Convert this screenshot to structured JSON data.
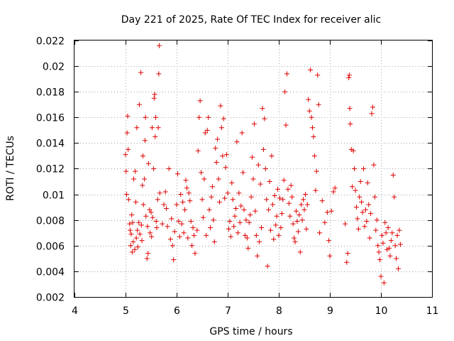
{
  "chart_data": {
    "type": "scatter",
    "title": "Day 221 of 2025, Rate Of TEC Index for receiver alic",
    "xlabel": "GPS time / hours",
    "ylabel": "ROTI / TECUs",
    "xlim": [
      4,
      11
    ],
    "ylim": [
      0.002,
      0.022
    ],
    "xticks": [
      4,
      5,
      6,
      7,
      8,
      9,
      10,
      11
    ],
    "xtick_labels": [
      "4",
      "5",
      "6",
      "7",
      "8",
      "9",
      "10",
      "11"
    ],
    "yticks": [
      0.002,
      0.004,
      0.006,
      0.008,
      0.01,
      0.012,
      0.014,
      0.016,
      0.018,
      0.02,
      0.022
    ],
    "ytick_labels": [
      "0.002",
      "0.004",
      "0.006",
      "0.008",
      "0.01",
      "0.012",
      "0.014",
      "0.016",
      "0.018",
      "0.02",
      "0.022"
    ],
    "grid": true,
    "marker": "+",
    "color": "#e00000",
    "series": [
      {
        "name": "ROTI",
        "points": [
          [
            5.0,
            0.0131
          ],
          [
            5.01,
            0.0118
          ],
          [
            5.02,
            0.01
          ],
          [
            5.03,
            0.0148
          ],
          [
            5.04,
            0.0161
          ],
          [
            5.05,
            0.0135
          ],
          [
            5.06,
            0.0096
          ],
          [
            5.08,
            0.0077
          ],
          [
            5.09,
            0.0072
          ],
          [
            5.1,
            0.006
          ],
          [
            5.11,
            0.0069
          ],
          [
            5.12,
            0.0084
          ],
          [
            5.13,
            0.0055
          ],
          [
            5.14,
            0.0078
          ],
          [
            5.15,
            0.0063
          ],
          [
            5.16,
            0.0112
          ],
          [
            5.18,
            0.0057
          ],
          [
            5.19,
            0.0118
          ],
          [
            5.2,
            0.0094
          ],
          [
            5.21,
            0.0066
          ],
          [
            5.22,
            0.0152
          ],
          [
            5.23,
            0.0072
          ],
          [
            5.24,
            0.0059
          ],
          [
            5.26,
            0.0078
          ],
          [
            5.27,
            0.017
          ],
          [
            5.28,
            0.0069
          ],
          [
            5.3,
            0.0195
          ],
          [
            5.31,
            0.0076
          ],
          [
            5.32,
            0.0064
          ],
          [
            5.33,
            0.0107
          ],
          [
            5.34,
            0.013
          ],
          [
            5.35,
            0.0092
          ],
          [
            5.37,
            0.0112
          ],
          [
            5.38,
            0.0142
          ],
          [
            5.39,
            0.016
          ],
          [
            5.4,
            0.0083
          ],
          [
            5.42,
            0.005
          ],
          [
            5.43,
            0.0075
          ],
          [
            5.44,
            0.0054
          ],
          [
            5.45,
            0.0124
          ],
          [
            5.47,
            0.0088
          ],
          [
            5.48,
            0.007
          ],
          [
            5.5,
            0.0086
          ],
          [
            5.51,
            0.0067
          ],
          [
            5.52,
            0.0152
          ],
          [
            5.53,
            0.0082
          ],
          [
            5.55,
            0.012
          ],
          [
            5.56,
            0.0175
          ],
          [
            5.57,
            0.0178
          ],
          [
            5.58,
            0.0145
          ],
          [
            5.59,
            0.016
          ],
          [
            5.6,
            0.0079
          ],
          [
            5.61,
            0.0074
          ],
          [
            5.63,
            0.0096
          ],
          [
            5.64,
            0.0152
          ],
          [
            5.65,
            0.0194
          ],
          [
            5.66,
            0.0216
          ],
          [
            5.67,
            0.0101
          ],
          [
            5.72,
            0.0077
          ],
          [
            5.75,
            0.0092
          ],
          [
            5.78,
            0.0102
          ],
          [
            5.8,
            0.0089
          ],
          [
            5.82,
            0.0075
          ],
          [
            5.85,
            0.012
          ],
          [
            5.88,
            0.0065
          ],
          [
            5.9,
            0.0081
          ],
          [
            5.92,
            0.006
          ],
          [
            5.94,
            0.0049
          ],
          [
            5.96,
            0.0071
          ],
          [
            6.0,
            0.0092
          ],
          [
            6.02,
            0.0116
          ],
          [
            6.04,
            0.0079
          ],
          [
            6.06,
            0.0067
          ],
          [
            6.08,
            0.01
          ],
          [
            6.1,
            0.0077
          ],
          [
            6.12,
            0.0094
          ],
          [
            6.14,
            0.007
          ],
          [
            6.16,
            0.0088
          ],
          [
            6.18,
            0.0111
          ],
          [
            6.2,
            0.0105
          ],
          [
            6.22,
            0.0066
          ],
          [
            6.24,
            0.0101
          ],
          [
            6.26,
            0.0095
          ],
          [
            6.28,
            0.0079
          ],
          [
            6.3,
            0.006
          ],
          [
            6.32,
            0.0074
          ],
          [
            6.34,
            0.0068
          ],
          [
            6.36,
            0.0054
          ],
          [
            6.4,
            0.0072
          ],
          [
            6.42,
            0.0134
          ],
          [
            6.44,
            0.016
          ],
          [
            6.46,
            0.0173
          ],
          [
            6.48,
            0.0117
          ],
          [
            6.5,
            0.0096
          ],
          [
            6.52,
            0.0082
          ],
          [
            6.54,
            0.0112
          ],
          [
            6.56,
            0.0148
          ],
          [
            6.58,
            0.0068
          ],
          [
            6.6,
            0.015
          ],
          [
            6.62,
            0.016
          ],
          [
            6.64,
            0.0088
          ],
          [
            6.66,
            0.0074
          ],
          [
            6.68,
            0.0098
          ],
          [
            6.7,
            0.0106
          ],
          [
            6.72,
            0.008
          ],
          [
            6.74,
            0.0063
          ],
          [
            6.76,
            0.0136
          ],
          [
            6.78,
            0.0125
          ],
          [
            6.8,
            0.0143
          ],
          [
            6.82,
            0.0112
          ],
          [
            6.84,
            0.0094
          ],
          [
            6.86,
            0.0169
          ],
          [
            6.88,
            0.0152
          ],
          [
            6.9,
            0.013
          ],
          [
            6.92,
            0.0159
          ],
          [
            6.94,
            0.0097
          ],
          [
            6.96,
            0.0121
          ],
          [
            6.98,
            0.0131
          ],
          [
            7.0,
            0.0101
          ],
          [
            7.02,
            0.0073
          ],
          [
            7.04,
            0.0079
          ],
          [
            7.06,
            0.0067
          ],
          [
            7.08,
            0.0109
          ],
          [
            7.1,
            0.0096
          ],
          [
            7.12,
            0.0075
          ],
          [
            7.14,
            0.0083
          ],
          [
            7.16,
            0.0089
          ],
          [
            7.18,
            0.0141
          ],
          [
            7.2,
            0.007
          ],
          [
            7.22,
            0.0101
          ],
          [
            7.24,
            0.0078
          ],
          [
            7.26,
            0.0091
          ],
          [
            7.28,
            0.0148
          ],
          [
            7.3,
            0.0117
          ],
          [
            7.32,
            0.0088
          ],
          [
            7.34,
            0.0068
          ],
          [
            7.36,
            0.008
          ],
          [
            7.38,
            0.0066
          ],
          [
            7.4,
            0.0058
          ],
          [
            7.42,
            0.0078
          ],
          [
            7.44,
            0.0084
          ],
          [
            7.46,
            0.0098
          ],
          [
            7.48,
            0.0129
          ],
          [
            7.5,
            0.0112
          ],
          [
            7.52,
            0.0155
          ],
          [
            7.54,
            0.0087
          ],
          [
            7.56,
            0.0068
          ],
          [
            7.58,
            0.0052
          ],
          [
            7.6,
            0.0123
          ],
          [
            7.62,
            0.0063
          ],
          [
            7.64,
            0.0108
          ],
          [
            7.66,
            0.0074
          ],
          [
            7.68,
            0.0167
          ],
          [
            7.7,
            0.0135
          ],
          [
            7.72,
            0.0159
          ],
          [
            7.74,
            0.012
          ],
          [
            7.76,
            0.0096
          ],
          [
            7.78,
            0.0044
          ],
          [
            7.8,
            0.0088
          ],
          [
            7.82,
            0.011
          ],
          [
            7.84,
            0.0072
          ],
          [
            7.86,
            0.013
          ],
          [
            7.88,
            0.0092
          ],
          [
            7.9,
            0.0065
          ],
          [
            7.92,
            0.0099
          ],
          [
            7.94,
            0.0076
          ],
          [
            7.96,
            0.0083
          ],
          [
            7.98,
            0.0104
          ],
          [
            8.0,
            0.0068
          ],
          [
            8.02,
            0.0097
          ],
          [
            8.04,
            0.0074
          ],
          [
            8.06,
            0.0085
          ],
          [
            8.08,
            0.0096
          ],
          [
            8.1,
            0.0111
          ],
          [
            8.12,
            0.018
          ],
          [
            8.14,
            0.0154
          ],
          [
            8.16,
            0.0194
          ],
          [
            8.18,
            0.0104
          ],
          [
            8.2,
            0.0093
          ],
          [
            8.22,
            0.0083
          ],
          [
            8.24,
            0.0107
          ],
          [
            8.26,
            0.0098
          ],
          [
            8.28,
            0.0077
          ],
          [
            8.3,
            0.0066
          ],
          [
            8.32,
            0.0063
          ],
          [
            8.34,
            0.0087
          ],
          [
            8.36,
            0.0079
          ],
          [
            8.38,
            0.0071
          ],
          [
            8.4,
            0.0084
          ],
          [
            8.42,
            0.0055
          ],
          [
            8.44,
            0.0092
          ],
          [
            8.46,
            0.008
          ],
          [
            8.48,
            0.0096
          ],
          [
            8.5,
            0.0088
          ],
          [
            8.52,
            0.01
          ],
          [
            8.54,
            0.0073
          ],
          [
            8.56,
            0.0092
          ],
          [
            8.58,
            0.0174
          ],
          [
            8.6,
            0.0165
          ],
          [
            8.62,
            0.0197
          ],
          [
            8.64,
            0.016
          ],
          [
            8.66,
            0.0152
          ],
          [
            8.68,
            0.0145
          ],
          [
            8.7,
            0.013
          ],
          [
            8.72,
            0.0103
          ],
          [
            8.74,
            0.0118
          ],
          [
            8.76,
            0.0193
          ],
          [
            8.78,
            0.017
          ],
          [
            8.8,
            0.007
          ],
          [
            8.85,
            0.0095
          ],
          [
            8.9,
            0.0078
          ],
          [
            8.95,
            0.0086
          ],
          [
            8.98,
            0.0064
          ],
          [
            9.0,
            0.0052
          ],
          [
            9.03,
            0.0087
          ],
          [
            9.07,
            0.0102
          ],
          [
            9.1,
            0.0105
          ],
          [
            9.3,
            0.0077
          ],
          [
            9.33,
            0.0047
          ],
          [
            9.35,
            0.0054
          ],
          [
            9.37,
            0.0191
          ],
          [
            9.38,
            0.0193
          ],
          [
            9.39,
            0.0167
          ],
          [
            9.4,
            0.0155
          ],
          [
            9.42,
            0.0135
          ],
          [
            9.44,
            0.0106
          ],
          [
            9.46,
            0.0134
          ],
          [
            9.48,
            0.012
          ],
          [
            9.5,
            0.0103
          ],
          [
            9.52,
            0.009
          ],
          [
            9.54,
            0.0081
          ],
          [
            9.56,
            0.0073
          ],
          [
            9.58,
            0.0098
          ],
          [
            9.6,
            0.011
          ],
          [
            9.62,
            0.0094
          ],
          [
            9.64,
            0.0086
          ],
          [
            9.66,
            0.012
          ],
          [
            9.68,
            0.0075
          ],
          [
            9.7,
            0.0088
          ],
          [
            9.72,
            0.0079
          ],
          [
            9.74,
            0.0109
          ],
          [
            9.76,
            0.0092
          ],
          [
            9.78,
            0.0066
          ],
          [
            9.8,
            0.0085
          ],
          [
            9.82,
            0.0163
          ],
          [
            9.84,
            0.0168
          ],
          [
            9.86,
            0.0123
          ],
          [
            9.88,
            0.0098
          ],
          [
            9.9,
            0.0072
          ],
          [
            9.92,
            0.008
          ],
          [
            9.94,
            0.006
          ],
          [
            9.96,
            0.0055
          ],
          [
            9.98,
            0.0049
          ],
          [
            10.0,
            0.0036
          ],
          [
            10.02,
            0.0068
          ],
          [
            10.04,
            0.0062
          ],
          [
            10.06,
            0.0031
          ],
          [
            10.08,
            0.0078
          ],
          [
            10.1,
            0.007
          ],
          [
            10.12,
            0.0057
          ],
          [
            10.14,
            0.0074
          ],
          [
            10.16,
            0.0058
          ],
          [
            10.18,
            0.0052
          ],
          [
            10.2,
            0.0064
          ],
          [
            10.22,
            0.007
          ],
          [
            10.24,
            0.0115
          ],
          [
            10.26,
            0.0098
          ],
          [
            10.28,
            0.006
          ],
          [
            10.3,
            0.005
          ],
          [
            10.32,
            0.0068
          ],
          [
            10.34,
            0.0042
          ],
          [
            10.36,
            0.0072
          ],
          [
            10.38,
            0.0061
          ]
        ]
      }
    ]
  }
}
